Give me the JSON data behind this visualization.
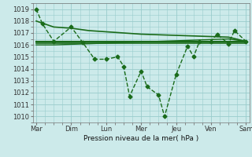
{
  "bg_color": "#cceaea",
  "grid_color": "#99cccc",
  "line_color": "#1a6b1a",
  "xlabel": "Pression niveau de la mer( hPa )",
  "ylim": [
    1009.5,
    1019.5
  ],
  "yticks": [
    1010,
    1011,
    1012,
    1013,
    1014,
    1015,
    1016,
    1017,
    1018,
    1019
  ],
  "xtick_labels": [
    "Mar",
    "Dim",
    "Lun",
    "Mer",
    "Jeu",
    "Ven",
    "Sam"
  ],
  "xtick_positions": [
    0,
    1,
    2,
    3,
    4,
    5,
    6
  ],
  "series": [
    {
      "x": [
        0.0,
        0.17,
        0.5,
        1.0,
        1.33,
        1.67,
        2.0,
        2.33,
        2.5,
        2.67,
        3.0,
        3.17,
        3.5,
        3.67,
        4.0,
        4.33,
        4.5,
        4.67,
        5.0,
        5.17,
        5.5,
        5.67,
        6.0
      ],
      "y": [
        1019.0,
        1017.8,
        1016.3,
        1017.5,
        1016.2,
        1014.8,
        1014.8,
        1015.0,
        1014.2,
        1011.7,
        1013.8,
        1012.5,
        1011.8,
        1010.0,
        1013.5,
        1015.9,
        1015.0,
        1016.3,
        1016.3,
        1016.9,
        1016.1,
        1017.2,
        1016.3
      ],
      "marker": "D",
      "markersize": 2.5,
      "linestyle": "--",
      "linewidth": 1.0
    },
    {
      "x": [
        0.0,
        0.5,
        1.0,
        1.5,
        2.0,
        2.5,
        3.0,
        3.5,
        4.0,
        4.5,
        5.0,
        5.5,
        6.0
      ],
      "y": [
        1018.0,
        1017.5,
        1017.4,
        1017.2,
        1017.1,
        1017.0,
        1016.9,
        1016.85,
        1016.8,
        1016.75,
        1016.7,
        1016.65,
        1016.3
      ],
      "marker": null,
      "markersize": 0,
      "linestyle": "-",
      "linewidth": 1.2
    },
    {
      "x": [
        0.0,
        0.5,
        1.0,
        1.5,
        2.0,
        2.5,
        3.0,
        3.5,
        4.0,
        4.5,
        5.0,
        5.5,
        6.0
      ],
      "y": [
        1016.3,
        1016.3,
        1016.3,
        1016.3,
        1016.3,
        1016.3,
        1016.3,
        1016.3,
        1016.3,
        1016.3,
        1016.3,
        1016.3,
        1016.3
      ],
      "marker": null,
      "markersize": 0,
      "linestyle": "-",
      "linewidth": 1.5
    },
    {
      "x": [
        0.0,
        0.5,
        1.0,
        1.5,
        2.0,
        2.5,
        3.0,
        3.5,
        4.0,
        4.5,
        5.0,
        5.5,
        6.0
      ],
      "y": [
        1016.15,
        1016.15,
        1016.15,
        1016.15,
        1016.15,
        1016.15,
        1016.15,
        1016.15,
        1016.15,
        1016.15,
        1016.15,
        1016.15,
        1016.15
      ],
      "marker": null,
      "markersize": 0,
      "linestyle": "-",
      "linewidth": 1.2
    },
    {
      "x": [
        0.0,
        0.5,
        1.0,
        1.5,
        2.0,
        2.5,
        3.0,
        3.5,
        4.0,
        4.5,
        5.0,
        5.5,
        6.0
      ],
      "y": [
        1016.0,
        1016.0,
        1016.05,
        1016.1,
        1016.15,
        1016.2,
        1016.25,
        1016.3,
        1016.35,
        1016.4,
        1016.45,
        1016.5,
        1016.3
      ],
      "marker": null,
      "markersize": 0,
      "linestyle": "-",
      "linewidth": 1.0
    }
  ],
  "figsize": [
    3.2,
    2.0
  ],
  "dpi": 100
}
